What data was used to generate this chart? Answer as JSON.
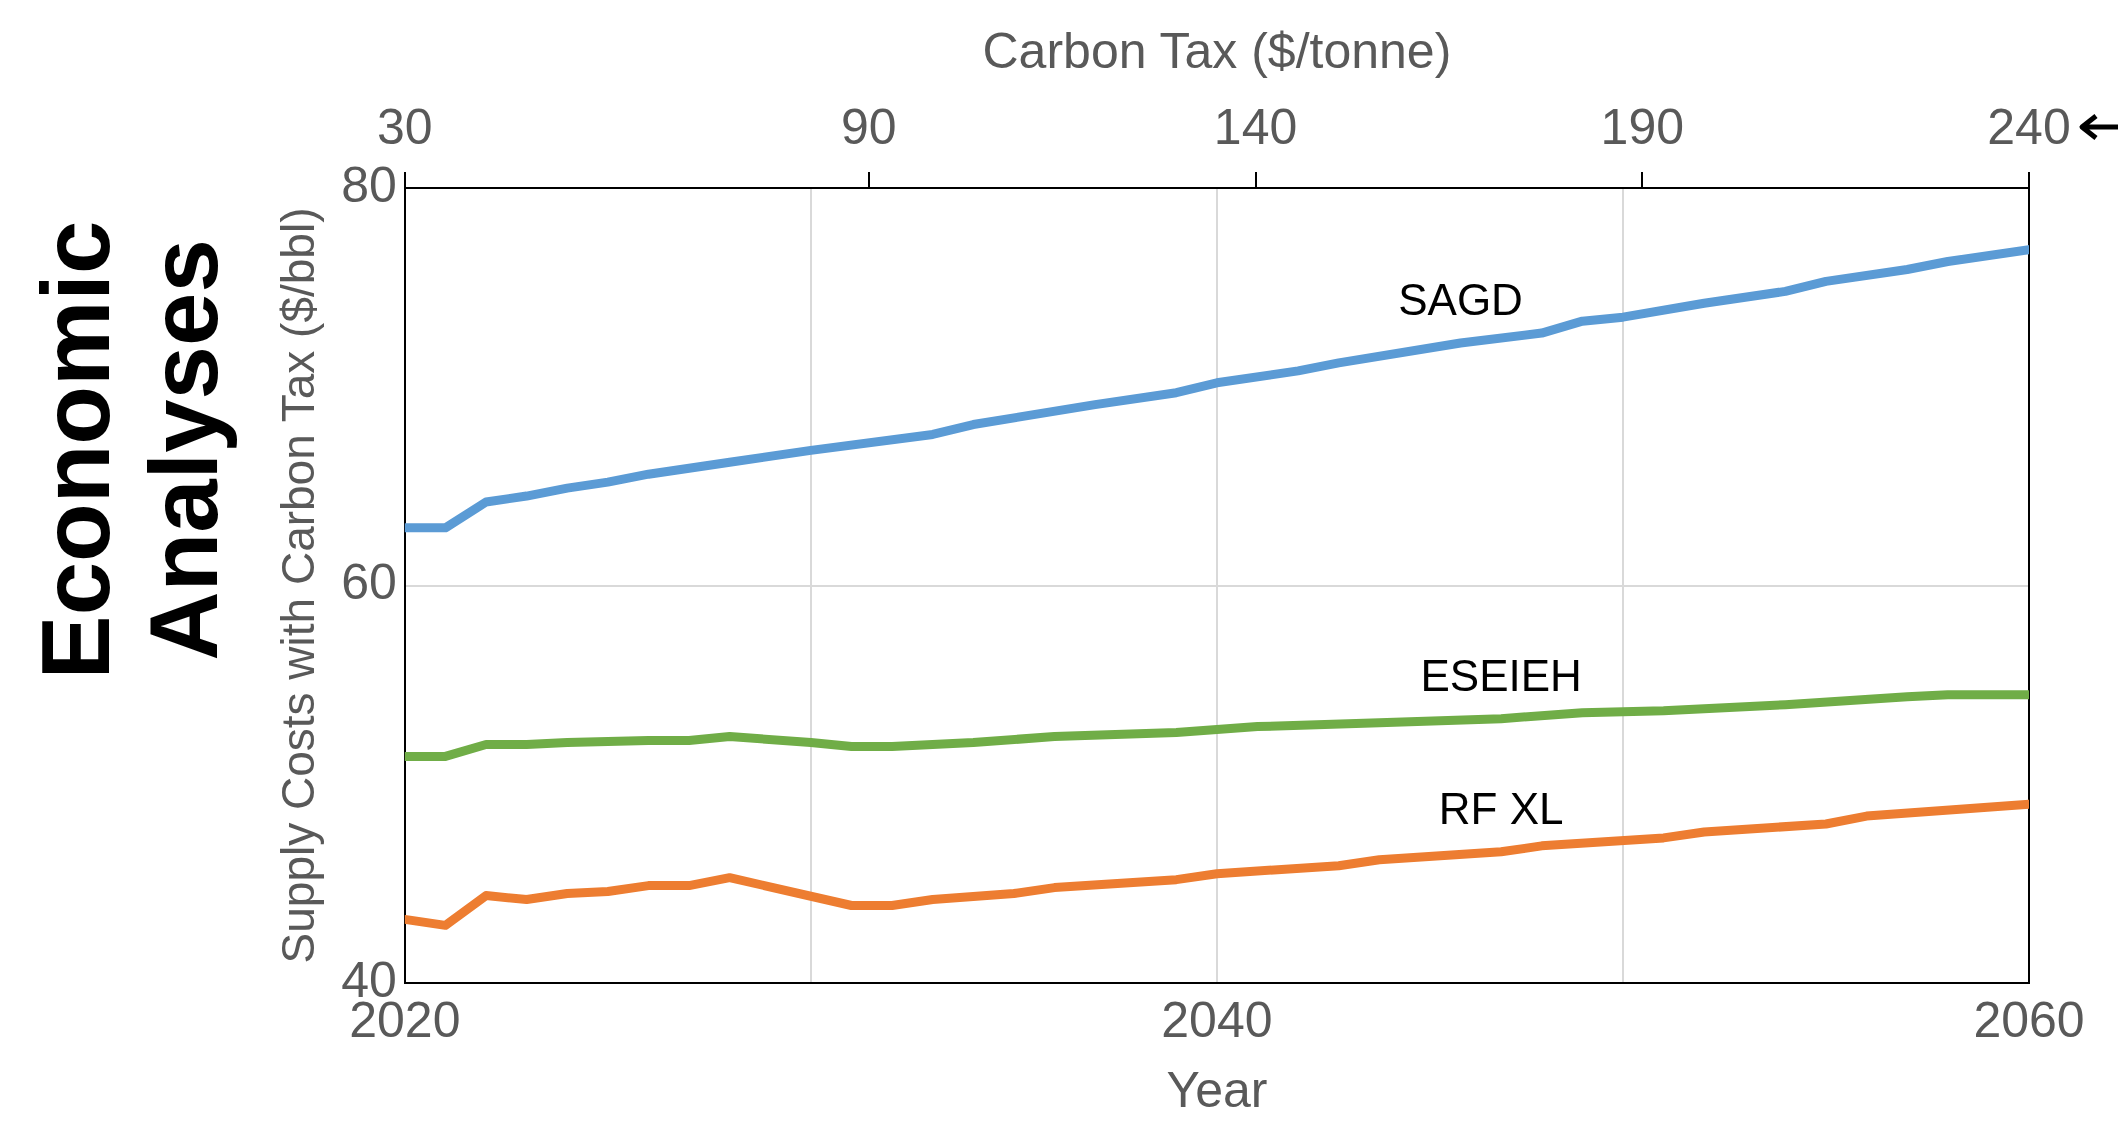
{
  "chart_data": {
    "type": "line",
    "title": "Economic Analyses",
    "xlabel": "Year",
    "ylabel": "Supply Costs with Carbon Tax ($/bbl)",
    "x2label": "Carbon Tax ($/tonne)",
    "xlim": [
      2020,
      2060
    ],
    "xticks": [
      2020,
      {
        "value": 2030,
        "label": null
      },
      2040,
      {
        "value": 2050,
        "label": null
      },
      2060
    ],
    "x2lim": [
      30,
      240
    ],
    "x2ticks": [
      30,
      90,
      140,
      190,
      240
    ],
    "ylim": [
      40,
      80
    ],
    "yticks": [
      40,
      60,
      80
    ],
    "grid": true,
    "legend": false,
    "marker": "none",
    "line_style": "solid",
    "series": [
      {
        "name": "SAGD",
        "color": "#5b9bd5",
        "x": [
          2020,
          2021,
          2022,
          2023,
          2024,
          2025,
          2026,
          2028,
          2030,
          2033,
          2034,
          2037,
          2039,
          2040,
          2042,
          2043,
          2046,
          2048,
          2049,
          2050,
          2052,
          2054,
          2055,
          2057,
          2058,
          2060
        ],
        "values": [
          62.9,
          62.9,
          64.2,
          64.5,
          64.9,
          65.2,
          65.6,
          66.2,
          66.8,
          67.6,
          68.1,
          69.1,
          69.7,
          70.2,
          70.8,
          71.2,
          72.2,
          72.7,
          73.3,
          73.5,
          74.2,
          74.8,
          75.3,
          75.9,
          76.3,
          76.9
        ]
      },
      {
        "name": "ESEIEH",
        "color": "#70ad47",
        "x": [
          2020,
          2021,
          2022,
          2023,
          2024,
          2026,
          2027,
          2028,
          2030,
          2031,
          2032,
          2034,
          2036,
          2039,
          2041,
          2044,
          2047,
          2049,
          2051,
          2054,
          2057,
          2058,
          2060
        ],
        "values": [
          51.4,
          51.4,
          52.0,
          52.0,
          52.1,
          52.2,
          52.2,
          52.4,
          52.1,
          51.9,
          51.9,
          52.1,
          52.4,
          52.6,
          52.9,
          53.1,
          53.3,
          53.6,
          53.7,
          54.0,
          54.4,
          54.5,
          54.5
        ]
      },
      {
        "name": "RF XL",
        "color": "#ed7d31",
        "x": [
          2020,
          2021,
          2022,
          2023,
          2024,
          2025,
          2026,
          2027,
          2028,
          2031,
          2032,
          2033,
          2035,
          2036,
          2039,
          2040,
          2043,
          2044,
          2047,
          2048,
          2051,
          2052,
          2055,
          2056,
          2060
        ],
        "values": [
          43.2,
          42.9,
          44.4,
          44.2,
          44.5,
          44.6,
          44.9,
          44.9,
          45.3,
          43.9,
          43.9,
          44.2,
          44.5,
          44.8,
          45.2,
          45.5,
          45.9,
          46.2,
          46.6,
          46.9,
          47.3,
          47.6,
          48.0,
          48.4,
          49.0
        ]
      }
    ]
  }
}
